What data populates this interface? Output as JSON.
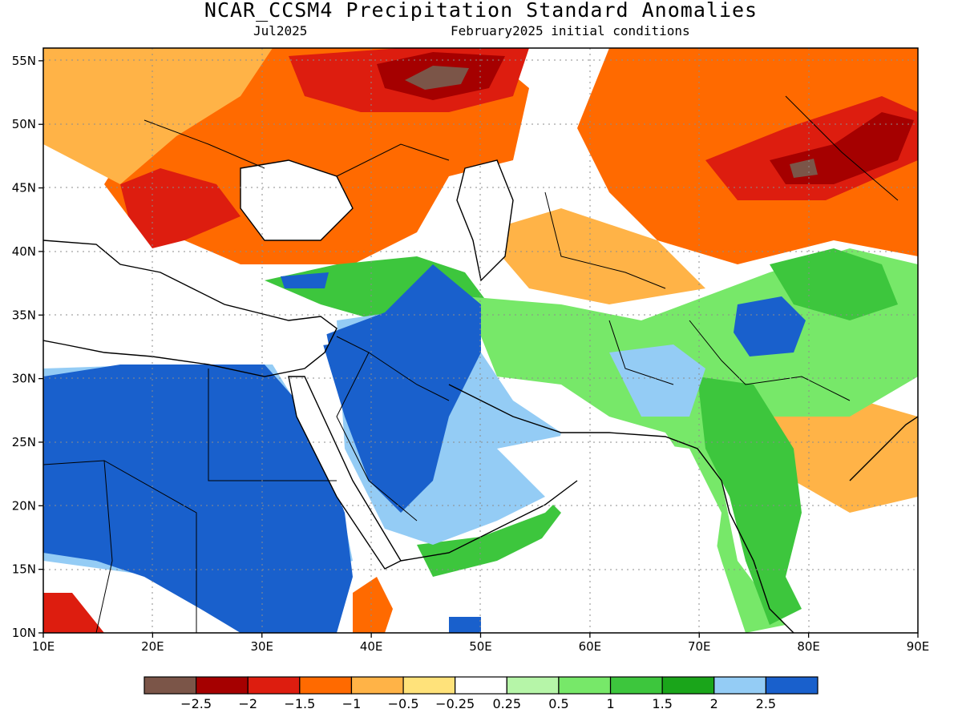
{
  "title": "NCAR_CCSM4 Precipitation Standard Anomalies",
  "valid_month": "Jul2025",
  "init_conditions": "February2025 initial conditions",
  "map": {
    "lon_range": [
      10,
      90
    ],
    "lat_range": [
      10,
      56
    ],
    "lon_ticks": [
      "10E",
      "20E",
      "30E",
      "40E",
      "50E",
      "60E",
      "70E",
      "80E",
      "90E"
    ],
    "lat_ticks": [
      "10N",
      "15N",
      "20N",
      "25N",
      "30N",
      "35N",
      "40N",
      "45N",
      "50N",
      "55N"
    ],
    "grid": "dotted"
  },
  "colorbar": {
    "colors": [
      "#7b5548",
      "#a50000",
      "#dd1d0f",
      "#ff6a00",
      "#ffb347",
      "#ffe27a",
      "#ffffff",
      "#b6f5a8",
      "#77e869",
      "#3dc63d",
      "#1aa51a",
      "#94ccf5",
      "#1960cc"
    ],
    "labels": [
      "-2.5",
      "-2",
      "-1.5",
      "-1",
      "-0.5",
      "-0.25",
      "0.25",
      "0.5",
      "1",
      "1.5",
      "2",
      "2.5"
    ]
  },
  "colors": {
    "strong_dry": "#a50000",
    "dry": "#ff6a00",
    "wet": "#3dc63d",
    "strong_wet": "#1960cc"
  }
}
